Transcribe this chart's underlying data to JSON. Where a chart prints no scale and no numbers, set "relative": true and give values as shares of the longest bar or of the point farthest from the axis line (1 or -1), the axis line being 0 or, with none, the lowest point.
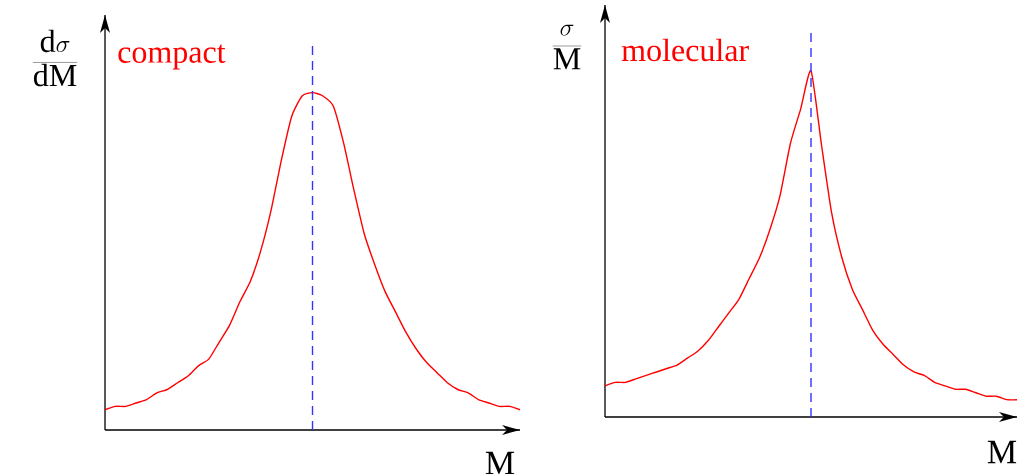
{
  "chart_data": [
    {
      "type": "line",
      "ylabel": "\\frac{\\mathrm{d}\\sigma}{\\mathrm{dM}}",
      "xlabel": "M",
      "relative": true,
      "categories": [
        null,
        null,
        null,
        null,
        null,
        null,
        null,
        null,
        null,
        null,
        null,
        null,
        null,
        null,
        null,
        null,
        null,
        null,
        null,
        null,
        null,
        null,
        null,
        null,
        null,
        null,
        null,
        null,
        null,
        null,
        null,
        null,
        null,
        null,
        null,
        null,
        null,
        null,
        null,
        null,
        null
      ],
      "series": [
        {
          "name": "compact",
          "color": "#ff0000",
          "values": [
            0.06,
            0.07,
            0.07,
            0.08,
            0.09,
            0.11,
            0.12,
            0.14,
            0.16,
            0.19,
            0.21,
            0.26,
            0.31,
            0.38,
            0.44,
            0.53,
            0.65,
            0.8,
            0.93,
            0.99,
            1,
            0.99,
            0.96,
            0.85,
            0.71,
            0.58,
            0.49,
            0.41,
            0.35,
            0.29,
            0.24,
            0.2,
            0.17,
            0.14,
            0.12,
            0.11,
            0.09,
            0.08,
            0.07,
            0.07,
            0.06
          ]
        }
      ]
    },
    {
      "type": "line",
      "ylabel": "\\frac{\\sigma}{\\mathrm{M}}",
      "xlabel": "M",
      "relative": true,
      "categories": [
        null,
        null,
        null,
        null,
        null,
        null,
        null,
        null,
        null,
        null,
        null,
        null,
        null,
        null,
        null,
        null,
        null,
        null,
        null,
        null,
        null,
        null,
        null,
        null,
        null,
        null,
        null,
        null,
        null,
        null,
        null,
        null,
        null,
        null,
        null,
        null,
        null,
        null,
        null,
        null,
        null
      ],
      "series": [
        {
          "name": "molecular",
          "color": "#ff0000",
          "values": [
            0.09,
            0.1,
            0.1,
            0.11,
            0.12,
            0.13,
            0.14,
            0.15,
            0.17,
            0.19,
            0.22,
            0.26,
            0.3,
            0.34,
            0.4,
            0.46,
            0.54,
            0.64,
            0.79,
            0.89,
            1,
            0.79,
            0.59,
            0.46,
            0.37,
            0.31,
            0.25,
            0.21,
            0.18,
            0.15,
            0.13,
            0.12,
            0.1,
            0.09,
            0.08,
            0.08,
            0.07,
            0.06,
            0.06,
            0.05,
            0.05
          ]
        }
      ]
    }
  ]
}
